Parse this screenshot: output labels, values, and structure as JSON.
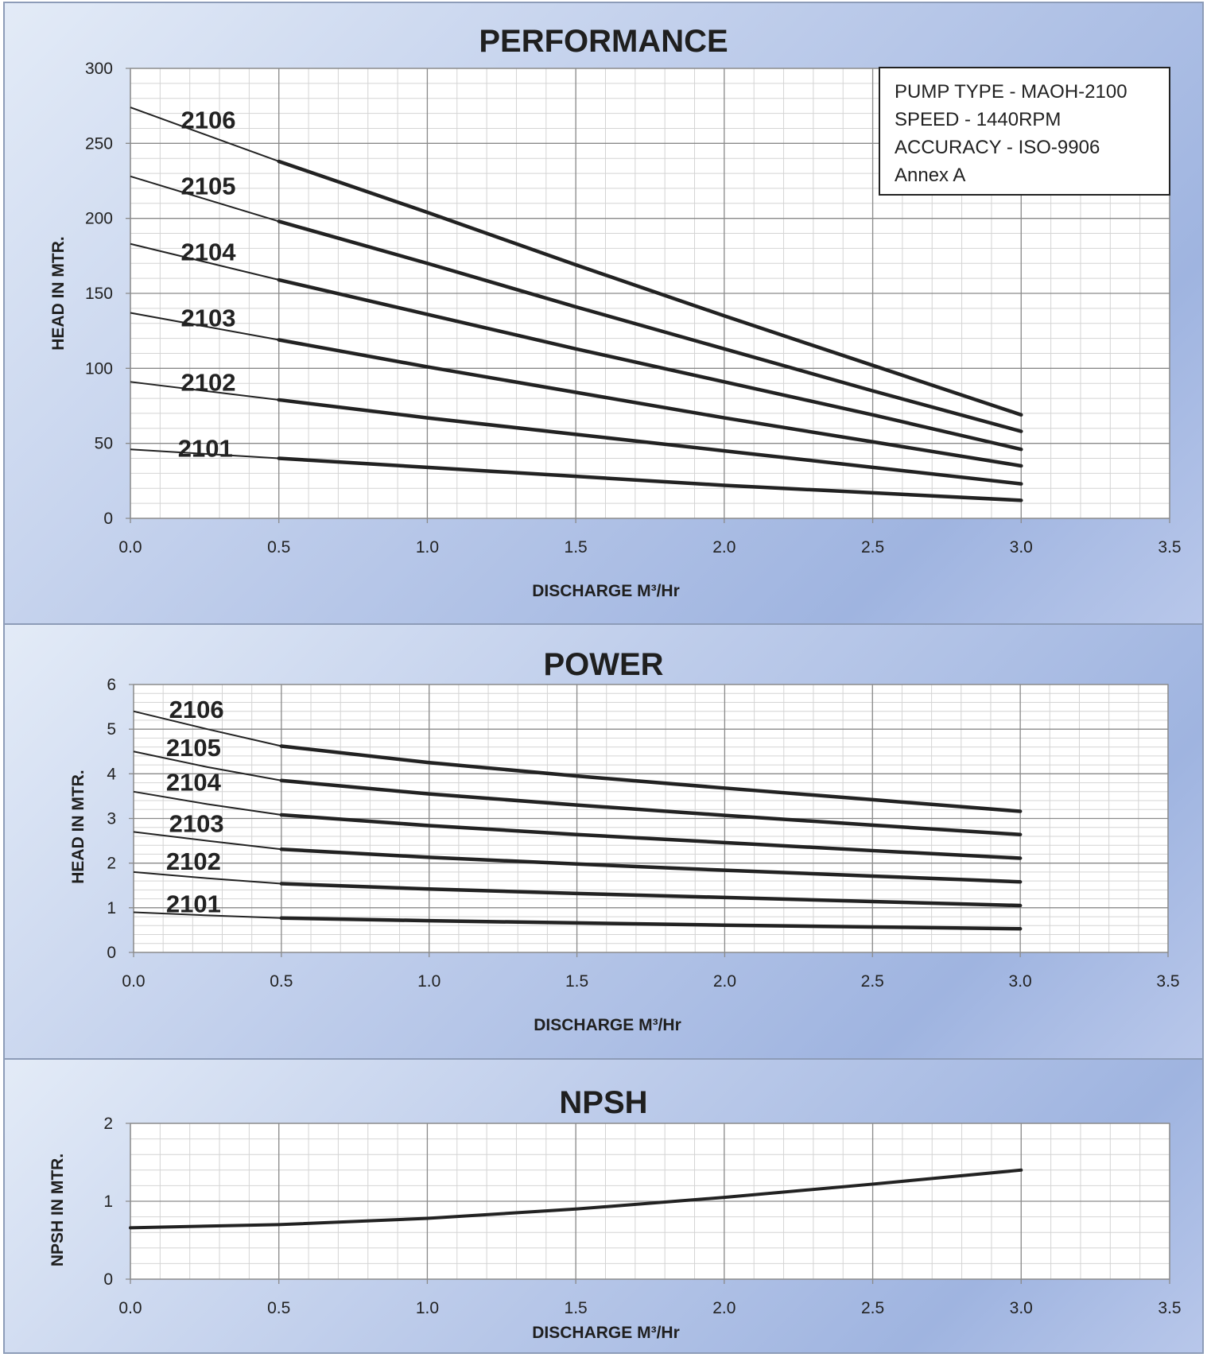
{
  "chart_data": [
    {
      "type": "line",
      "title": "PERFORMANCE",
      "xlabel": "DISCHARGE M³/Hr",
      "ylabel": "HEAD IN MTR.",
      "xlim": [
        0,
        3.5
      ],
      "ylim": [
        0,
        300
      ],
      "xticks": [
        "0.0",
        "0.5",
        "1.0",
        "1.5",
        "2.0",
        "2.5",
        "3.0",
        "3.5"
      ],
      "yticks": [
        "0",
        "50",
        "100",
        "150",
        "200",
        "250",
        "300"
      ],
      "grid": true,
      "info_box": [
        "PUMP TYPE - MAOH-2100",
        "SPEED - 1440RPM",
        "ACCURACY - ISO-9906",
        "Annex A"
      ],
      "series": [
        {
          "name": "2106",
          "x": [
            0,
            0.5,
            1.0,
            1.5,
            2.0,
            2.5,
            3.0
          ],
          "y": [
            274,
            238,
            204,
            169,
            135,
            102,
            69
          ],
          "label_pos": [
            0.17,
            260
          ]
        },
        {
          "name": "2105",
          "x": [
            0,
            0.5,
            1.0,
            1.5,
            2.0,
            2.5,
            3.0
          ],
          "y": [
            228,
            198,
            170,
            141,
            113,
            85,
            58
          ],
          "label_pos": [
            0.17,
            216
          ]
        },
        {
          "name": "2104",
          "x": [
            0,
            0.5,
            1.0,
            1.5,
            2.0,
            2.5,
            3.0
          ],
          "y": [
            183,
            159,
            136,
            113,
            91,
            69,
            46
          ],
          "label_pos": [
            0.17,
            172
          ]
        },
        {
          "name": "2103",
          "x": [
            0,
            0.5,
            1.0,
            1.5,
            2.0,
            2.5,
            3.0
          ],
          "y": [
            137,
            119,
            101,
            84,
            67,
            51,
            35
          ],
          "label_pos": [
            0.17,
            128
          ]
        },
        {
          "name": "2102",
          "x": [
            0,
            0.5,
            1.0,
            1.5,
            2.0,
            2.5,
            3.0
          ],
          "y": [
            91,
            79,
            67,
            56,
            45,
            34,
            23
          ],
          "label_pos": [
            0.17,
            85
          ]
        },
        {
          "name": "2101",
          "x": [
            0,
            0.5,
            1.0,
            1.5,
            2.0,
            2.5,
            3.0
          ],
          "y": [
            46,
            40,
            34,
            28,
            22,
            17,
            12
          ],
          "label_pos": [
            0.16,
            41
          ]
        }
      ]
    },
    {
      "type": "line",
      "title": "POWER",
      "xlabel": "DISCHARGE M³/Hr",
      "ylabel": "HEAD IN MTR.",
      "xlim": [
        0,
        3.5
      ],
      "ylim": [
        0,
        6
      ],
      "xticks": [
        "0.0",
        "0.5",
        "1.0",
        "1.5",
        "2.0",
        "2.5",
        "3.0",
        "3.5"
      ],
      "yticks": [
        "0",
        "1",
        "2",
        "3",
        "4",
        "5",
        "6"
      ],
      "grid": true,
      "series": [
        {
          "name": "2106",
          "x": [
            0,
            0.25,
            0.5,
            1.0,
            1.5,
            2.0,
            2.5,
            3.0
          ],
          "y": [
            5.4,
            5.0,
            4.62,
            4.25,
            3.95,
            3.68,
            3.42,
            3.16
          ],
          "label_pos": [
            0.12,
            5.25
          ]
        },
        {
          "name": "2105",
          "x": [
            0,
            0.25,
            0.5,
            1.0,
            1.5,
            2.0,
            2.5,
            3.0
          ],
          "y": [
            4.5,
            4.15,
            3.85,
            3.55,
            3.3,
            3.07,
            2.85,
            2.64
          ],
          "label_pos": [
            0.11,
            4.4
          ]
        },
        {
          "name": "2104",
          "x": [
            0,
            0.25,
            0.5,
            1.0,
            1.5,
            2.0,
            2.5,
            3.0
          ],
          "y": [
            3.6,
            3.32,
            3.08,
            2.84,
            2.64,
            2.46,
            2.28,
            2.11
          ],
          "label_pos": [
            0.11,
            3.62
          ]
        },
        {
          "name": "2103",
          "x": [
            0,
            0.25,
            0.5,
            1.0,
            1.5,
            2.0,
            2.5,
            3.0
          ],
          "y": [
            2.7,
            2.5,
            2.31,
            2.13,
            1.98,
            1.84,
            1.71,
            1.58
          ],
          "label_pos": [
            0.12,
            2.7
          ]
        },
        {
          "name": "2102",
          "x": [
            0,
            0.25,
            0.5,
            1.0,
            1.5,
            2.0,
            2.5,
            3.0
          ],
          "y": [
            1.8,
            1.66,
            1.54,
            1.42,
            1.32,
            1.23,
            1.14,
            1.05
          ],
          "label_pos": [
            0.11,
            1.85
          ]
        },
        {
          "name": "2101",
          "x": [
            0,
            0.25,
            0.5,
            1.0,
            1.5,
            2.0,
            2.5,
            3.0
          ],
          "y": [
            0.9,
            0.83,
            0.77,
            0.71,
            0.66,
            0.61,
            0.57,
            0.53
          ],
          "label_pos": [
            0.11,
            0.9
          ]
        }
      ]
    },
    {
      "type": "line",
      "title": "NPSH",
      "xlabel": "DISCHARGE M³/Hr",
      "ylabel": "NPSH IN MTR.",
      "xlim": [
        0,
        3.5
      ],
      "ylim": [
        0,
        2
      ],
      "xticks": [
        "0.0",
        "0.5",
        "1.0",
        "1.5",
        "2.0",
        "2.5",
        "3.0",
        "3.5"
      ],
      "yticks": [
        "0",
        "1",
        "2"
      ],
      "grid": true,
      "series": [
        {
          "name": "",
          "x": [
            0,
            0.5,
            1.0,
            1.5,
            2.0,
            2.5,
            3.0
          ],
          "y": [
            0.66,
            0.7,
            0.78,
            0.9,
            1.05,
            1.22,
            1.4
          ]
        }
      ]
    }
  ]
}
